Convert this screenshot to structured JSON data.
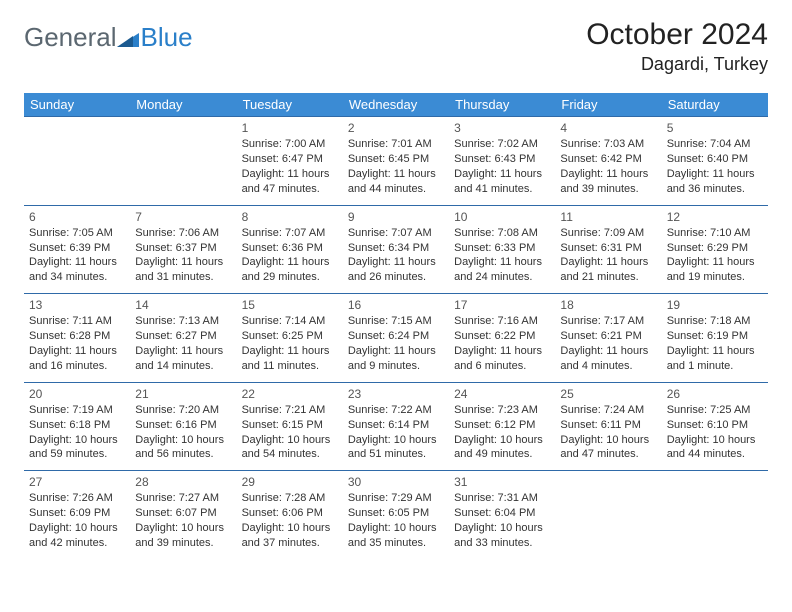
{
  "logo": {
    "text1": "General",
    "text2": "Blue"
  },
  "title": "October 2024",
  "location": "Dagardi, Turkey",
  "colors": {
    "header_bg": "#3b8bd4",
    "header_text": "#ffffff",
    "cell_border": "#2f6aa8",
    "text": "#333333",
    "logo_gray": "#5b6770",
    "logo_blue": "#2a7fc9",
    "background": "#ffffff"
  },
  "typography": {
    "title_fontsize": 30,
    "location_fontsize": 18,
    "weekday_fontsize": 13,
    "cell_fontsize": 11,
    "daynum_fontsize": 12
  },
  "weekdays": [
    "Sunday",
    "Monday",
    "Tuesday",
    "Wednesday",
    "Thursday",
    "Friday",
    "Saturday"
  ],
  "weeks": [
    [
      null,
      null,
      {
        "n": "1",
        "sr": "Sunrise: 7:00 AM",
        "ss": "Sunset: 6:47 PM",
        "dl1": "Daylight: 11 hours",
        "dl2": "and 47 minutes."
      },
      {
        "n": "2",
        "sr": "Sunrise: 7:01 AM",
        "ss": "Sunset: 6:45 PM",
        "dl1": "Daylight: 11 hours",
        "dl2": "and 44 minutes."
      },
      {
        "n": "3",
        "sr": "Sunrise: 7:02 AM",
        "ss": "Sunset: 6:43 PM",
        "dl1": "Daylight: 11 hours",
        "dl2": "and 41 minutes."
      },
      {
        "n": "4",
        "sr": "Sunrise: 7:03 AM",
        "ss": "Sunset: 6:42 PM",
        "dl1": "Daylight: 11 hours",
        "dl2": "and 39 minutes."
      },
      {
        "n": "5",
        "sr": "Sunrise: 7:04 AM",
        "ss": "Sunset: 6:40 PM",
        "dl1": "Daylight: 11 hours",
        "dl2": "and 36 minutes."
      }
    ],
    [
      {
        "n": "6",
        "sr": "Sunrise: 7:05 AM",
        "ss": "Sunset: 6:39 PM",
        "dl1": "Daylight: 11 hours",
        "dl2": "and 34 minutes."
      },
      {
        "n": "7",
        "sr": "Sunrise: 7:06 AM",
        "ss": "Sunset: 6:37 PM",
        "dl1": "Daylight: 11 hours",
        "dl2": "and 31 minutes."
      },
      {
        "n": "8",
        "sr": "Sunrise: 7:07 AM",
        "ss": "Sunset: 6:36 PM",
        "dl1": "Daylight: 11 hours",
        "dl2": "and 29 minutes."
      },
      {
        "n": "9",
        "sr": "Sunrise: 7:07 AM",
        "ss": "Sunset: 6:34 PM",
        "dl1": "Daylight: 11 hours",
        "dl2": "and 26 minutes."
      },
      {
        "n": "10",
        "sr": "Sunrise: 7:08 AM",
        "ss": "Sunset: 6:33 PM",
        "dl1": "Daylight: 11 hours",
        "dl2": "and 24 minutes."
      },
      {
        "n": "11",
        "sr": "Sunrise: 7:09 AM",
        "ss": "Sunset: 6:31 PM",
        "dl1": "Daylight: 11 hours",
        "dl2": "and 21 minutes."
      },
      {
        "n": "12",
        "sr": "Sunrise: 7:10 AM",
        "ss": "Sunset: 6:29 PM",
        "dl1": "Daylight: 11 hours",
        "dl2": "and 19 minutes."
      }
    ],
    [
      {
        "n": "13",
        "sr": "Sunrise: 7:11 AM",
        "ss": "Sunset: 6:28 PM",
        "dl1": "Daylight: 11 hours",
        "dl2": "and 16 minutes."
      },
      {
        "n": "14",
        "sr": "Sunrise: 7:13 AM",
        "ss": "Sunset: 6:27 PM",
        "dl1": "Daylight: 11 hours",
        "dl2": "and 14 minutes."
      },
      {
        "n": "15",
        "sr": "Sunrise: 7:14 AM",
        "ss": "Sunset: 6:25 PM",
        "dl1": "Daylight: 11 hours",
        "dl2": "and 11 minutes."
      },
      {
        "n": "16",
        "sr": "Sunrise: 7:15 AM",
        "ss": "Sunset: 6:24 PM",
        "dl1": "Daylight: 11 hours",
        "dl2": "and 9 minutes."
      },
      {
        "n": "17",
        "sr": "Sunrise: 7:16 AM",
        "ss": "Sunset: 6:22 PM",
        "dl1": "Daylight: 11 hours",
        "dl2": "and 6 minutes."
      },
      {
        "n": "18",
        "sr": "Sunrise: 7:17 AM",
        "ss": "Sunset: 6:21 PM",
        "dl1": "Daylight: 11 hours",
        "dl2": "and 4 minutes."
      },
      {
        "n": "19",
        "sr": "Sunrise: 7:18 AM",
        "ss": "Sunset: 6:19 PM",
        "dl1": "Daylight: 11 hours",
        "dl2": "and 1 minute."
      }
    ],
    [
      {
        "n": "20",
        "sr": "Sunrise: 7:19 AM",
        "ss": "Sunset: 6:18 PM",
        "dl1": "Daylight: 10 hours",
        "dl2": "and 59 minutes."
      },
      {
        "n": "21",
        "sr": "Sunrise: 7:20 AM",
        "ss": "Sunset: 6:16 PM",
        "dl1": "Daylight: 10 hours",
        "dl2": "and 56 minutes."
      },
      {
        "n": "22",
        "sr": "Sunrise: 7:21 AM",
        "ss": "Sunset: 6:15 PM",
        "dl1": "Daylight: 10 hours",
        "dl2": "and 54 minutes."
      },
      {
        "n": "23",
        "sr": "Sunrise: 7:22 AM",
        "ss": "Sunset: 6:14 PM",
        "dl1": "Daylight: 10 hours",
        "dl2": "and 51 minutes."
      },
      {
        "n": "24",
        "sr": "Sunrise: 7:23 AM",
        "ss": "Sunset: 6:12 PM",
        "dl1": "Daylight: 10 hours",
        "dl2": "and 49 minutes."
      },
      {
        "n": "25",
        "sr": "Sunrise: 7:24 AM",
        "ss": "Sunset: 6:11 PM",
        "dl1": "Daylight: 10 hours",
        "dl2": "and 47 minutes."
      },
      {
        "n": "26",
        "sr": "Sunrise: 7:25 AM",
        "ss": "Sunset: 6:10 PM",
        "dl1": "Daylight: 10 hours",
        "dl2": "and 44 minutes."
      }
    ],
    [
      {
        "n": "27",
        "sr": "Sunrise: 7:26 AM",
        "ss": "Sunset: 6:09 PM",
        "dl1": "Daylight: 10 hours",
        "dl2": "and 42 minutes."
      },
      {
        "n": "28",
        "sr": "Sunrise: 7:27 AM",
        "ss": "Sunset: 6:07 PM",
        "dl1": "Daylight: 10 hours",
        "dl2": "and 39 minutes."
      },
      {
        "n": "29",
        "sr": "Sunrise: 7:28 AM",
        "ss": "Sunset: 6:06 PM",
        "dl1": "Daylight: 10 hours",
        "dl2": "and 37 minutes."
      },
      {
        "n": "30",
        "sr": "Sunrise: 7:29 AM",
        "ss": "Sunset: 6:05 PM",
        "dl1": "Daylight: 10 hours",
        "dl2": "and 35 minutes."
      },
      {
        "n": "31",
        "sr": "Sunrise: 7:31 AM",
        "ss": "Sunset: 6:04 PM",
        "dl1": "Daylight: 10 hours",
        "dl2": "and 33 minutes."
      },
      null,
      null
    ]
  ]
}
